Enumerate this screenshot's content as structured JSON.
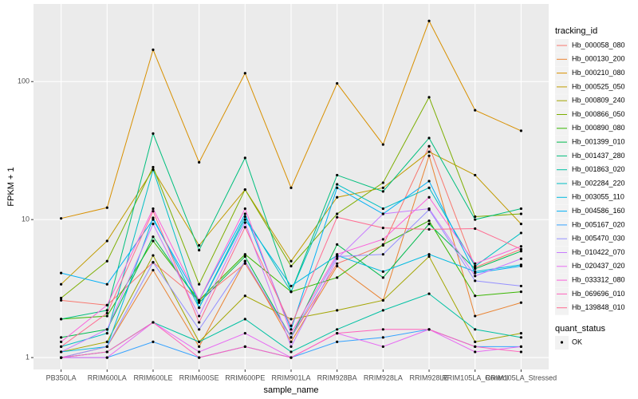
{
  "chart_data": {
    "type": "line",
    "log_y": true,
    "grid": true,
    "x_label": "sample_name",
    "y_label": "FPKM + 1",
    "legend_title": "tracking_id",
    "categories": [
      "PB350LA",
      "RRIM600LA",
      "RRIM600LE",
      "RRIM600SE",
      "RRIM600PE",
      "RRIM901LA",
      "RRIM928BA",
      "RRIM928LA",
      "RRIM928LE",
      "RRIM105LA_Control",
      "RRIM105LA_Stressed"
    ],
    "ylim": [
      0.82,
      365
    ],
    "yticks": [
      1,
      10,
      100
    ],
    "point_color": "#000000",
    "quant_status": {
      "title": "quant_status",
      "levels": [
        "OK"
      ]
    },
    "series": [
      {
        "name": "Hb_000058_080",
        "color": "#F8766D",
        "values": [
          2.6,
          2.4,
          4.9,
          2.6,
          4.8,
          1.4,
          4.8,
          6.5,
          34,
          4.5,
          6.1
        ]
      },
      {
        "name": "Hb_000130_200",
        "color": "#EA8331",
        "values": [
          1.0,
          1.2,
          4.3,
          1.2,
          5,
          1.3,
          4.6,
          2.6,
          29,
          2.0,
          2.5
        ]
      },
      {
        "name": "Hb_000210_080",
        "color": "#D89000",
        "values": [
          10.2,
          12.2,
          170,
          26,
          115,
          17,
          97,
          35,
          275,
          62,
          44
        ]
      },
      {
        "name": "Hb_000525_050",
        "color": "#C09B00",
        "values": [
          3.4,
          7.0,
          23,
          6.5,
          16.5,
          5.0,
          14.5,
          17,
          31,
          21,
          9.3
        ]
      },
      {
        "name": "Hb_000809_240",
        "color": "#A3A500",
        "values": [
          1.1,
          1.3,
          5.5,
          1.3,
          2.8,
          1.9,
          2.2,
          2.6,
          5.4,
          1.3,
          1.5
        ]
      },
      {
        "name": "Hb_000866_050",
        "color": "#7CAE00",
        "values": [
          2.7,
          5.0,
          24,
          3.4,
          16.5,
          4.6,
          11,
          18.5,
          77,
          10.5,
          11
        ]
      },
      {
        "name": "Hb_000890_080",
        "color": "#39B600",
        "values": [
          1.9,
          2.0,
          7.0,
          2.6,
          5.6,
          3.0,
          3.8,
          6.6,
          9.8,
          2.8,
          3.0
        ]
      },
      {
        "name": "Hb_001399_010",
        "color": "#00BB4E",
        "values": [
          1.4,
          1.6,
          7.5,
          2.5,
          5.4,
          1.4,
          6.6,
          3.8,
          9.3,
          4.4,
          5.9
        ]
      },
      {
        "name": "Hb_001437_280",
        "color": "#00BF7D",
        "values": [
          1.9,
          2.2,
          42,
          6,
          28,
          3,
          21,
          16,
          39,
          10,
          12
        ]
      },
      {
        "name": "Hb_001863_020",
        "color": "#00C1A3",
        "values": [
          1.0,
          1.1,
          1.8,
          1.3,
          1.9,
          1.1,
          1.6,
          2.2,
          2.9,
          1.6,
          1.4
        ]
      },
      {
        "name": "Hb_002284_220",
        "color": "#00BFC4",
        "values": [
          1.2,
          1.5,
          23,
          2.3,
          10.5,
          3.0,
          18,
          12,
          17,
          4.6,
          8
        ]
      },
      {
        "name": "Hb_003055_110",
        "color": "#00BAE0",
        "values": [
          1.1,
          1.2,
          10.3,
          2.3,
          10,
          3.3,
          5.5,
          4.2,
          5.6,
          4.2,
          4.7
        ]
      },
      {
        "name": "Hb_004586_160",
        "color": "#00B0F6",
        "values": [
          4.1,
          3.4,
          10,
          2.6,
          11,
          1.6,
          17,
          11,
          19,
          4.1,
          4.6
        ]
      },
      {
        "name": "Hb_005167_020",
        "color": "#35A2FF",
        "values": [
          1.0,
          1.0,
          1.3,
          1.0,
          1.2,
          1.0,
          1.3,
          1.4,
          1.6,
          1.2,
          1.2
        ]
      },
      {
        "name": "Hb_005470_030",
        "color": "#9590FF",
        "values": [
          1.0,
          1.2,
          4.9,
          1.6,
          5.0,
          1.4,
          5.4,
          5.6,
          11.8,
          3.6,
          3.3
        ]
      },
      {
        "name": "Hb_010422_070",
        "color": "#C77CFF",
        "values": [
          1.1,
          1.6,
          9.3,
          2.0,
          9.5,
          1.2,
          5.2,
          11,
          12,
          3.9,
          5.2
        ]
      },
      {
        "name": "Hb_020437_020",
        "color": "#E76BF3",
        "values": [
          1.0,
          1.0,
          1.8,
          1.1,
          1.5,
          1.0,
          1.5,
          1.2,
          1.6,
          1.1,
          1.2
        ]
      },
      {
        "name": "Hb_033312_080",
        "color": "#FA62DB",
        "values": [
          1.3,
          2.4,
          12,
          2.6,
          12,
          1.5,
          5.6,
          7.2,
          14.5,
          4.8,
          6.4
        ]
      },
      {
        "name": "Hb_069696_010",
        "color": "#FF62BC",
        "values": [
          1.0,
          1.1,
          1.8,
          1.0,
          1.2,
          1.0,
          1.5,
          1.6,
          1.6,
          1.2,
          1.1
        ]
      },
      {
        "name": "Hb_139848_010",
        "color": "#FF6C91",
        "values": [
          1.2,
          2.1,
          11.5,
          1.8,
          8.8,
          1.7,
          10.4,
          8.7,
          8.5,
          8.6,
          6.1
        ]
      }
    ]
  }
}
